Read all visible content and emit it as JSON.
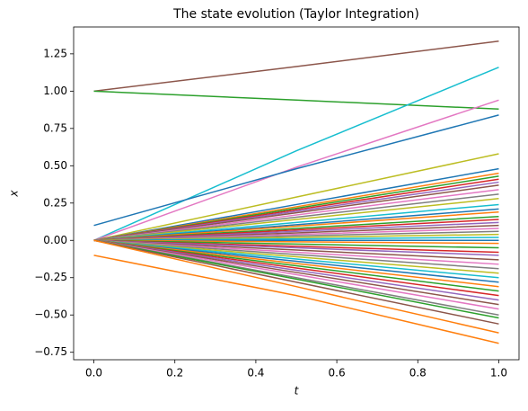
{
  "chart_data": {
    "type": "line",
    "title": "The state evolution (Taylor Integration)",
    "x_label": "t",
    "y_label": "x",
    "x": [
      0,
      0.5,
      1
    ],
    "xlim": [
      -0.05,
      1.05
    ],
    "ylim": [
      -0.8,
      1.43
    ],
    "xticks": [
      {
        "value": 0,
        "label": "0.0"
      },
      {
        "value": 0.2,
        "label": "0.2"
      },
      {
        "value": 0.4,
        "label": "0.4"
      },
      {
        "value": 0.6,
        "label": "0.6"
      },
      {
        "value": 0.8,
        "label": "0.8"
      },
      {
        "value": 1,
        "label": "1.0"
      }
    ],
    "yticks": [
      {
        "value": -0.75,
        "label": "−0.75"
      },
      {
        "value": -0.5,
        "label": "−0.50"
      },
      {
        "value": -0.25,
        "label": "−0.25"
      },
      {
        "value": 0,
        "label": "0.00"
      },
      {
        "value": 0.25,
        "label": "0.25"
      },
      {
        "value": 0.5,
        "label": "0.50"
      },
      {
        "value": 0.75,
        "label": "0.75"
      },
      {
        "value": 1,
        "label": "1.00"
      },
      {
        "value": 1.25,
        "label": "1.25"
      }
    ],
    "series": [
      {
        "color": "#8c564b",
        "values": [
          1.0,
          1.165,
          1.335
        ]
      },
      {
        "color": "#2ca02c",
        "values": [
          1.0,
          0.94,
          0.88
        ]
      },
      {
        "color": "#17becf",
        "values": [
          0,
          0.6,
          1.16
        ]
      },
      {
        "color": "#e377c2",
        "values": [
          0,
          0.49,
          0.94
        ]
      },
      {
        "color": "#1f77b4",
        "values": [
          0.1,
          0.48,
          0.84
        ]
      },
      {
        "color": "#ff7f0e",
        "values": [
          -0.1,
          -0.37,
          -0.69
        ]
      },
      {
        "color": "#bcbd22",
        "values": [
          0,
          0.29,
          0.58
        ]
      },
      {
        "color": "#1f77b4",
        "values": [
          0,
          0.24,
          0.48
        ]
      },
      {
        "color": "#ff7f0e",
        "values": [
          0,
          0.225,
          0.45
        ]
      },
      {
        "color": "#2ca02c",
        "values": [
          0,
          0.215,
          0.43
        ]
      },
      {
        "color": "#d62728",
        "values": [
          0,
          0.205,
          0.41
        ]
      },
      {
        "color": "#9467bd",
        "values": [
          0,
          0.195,
          0.39
        ]
      },
      {
        "color": "#8c564b",
        "values": [
          0,
          0.185,
          0.37
        ]
      },
      {
        "color": "#e377c2",
        "values": [
          0,
          0.17,
          0.34
        ]
      },
      {
        "color": "#7f7f7f",
        "values": [
          0,
          0.155,
          0.31
        ]
      },
      {
        "color": "#bcbd22",
        "values": [
          0,
          0.14,
          0.28
        ]
      },
      {
        "color": "#17becf",
        "values": [
          0,
          0.12,
          0.24
        ]
      },
      {
        "color": "#1f77b4",
        "values": [
          0,
          0.105,
          0.21
        ]
      },
      {
        "color": "#ff7f0e",
        "values": [
          0,
          0.095,
          0.19
        ]
      },
      {
        "color": "#2ca02c",
        "values": [
          0,
          0.08,
          0.16
        ]
      },
      {
        "color": "#d62728",
        "values": [
          0,
          0.07,
          0.14
        ]
      },
      {
        "color": "#9467bd",
        "values": [
          0,
          0.06,
          0.12
        ]
      },
      {
        "color": "#8c564b",
        "values": [
          0,
          0.05,
          0.1
        ]
      },
      {
        "color": "#e377c2",
        "values": [
          0,
          0.04,
          0.08
        ]
      },
      {
        "color": "#7f7f7f",
        "values": [
          0,
          0.03,
          0.06
        ]
      },
      {
        "color": "#bcbd22",
        "values": [
          0,
          0.02,
          0.04
        ]
      },
      {
        "color": "#17becf",
        "values": [
          0,
          0.01,
          0.02
        ]
      },
      {
        "color": "#1f77b4",
        "values": [
          0,
          0,
          0
        ]
      },
      {
        "color": "#ff7f0e",
        "values": [
          0,
          -0.01,
          -0.02
        ]
      },
      {
        "color": "#2ca02c",
        "values": [
          0,
          -0.025,
          -0.05
        ]
      },
      {
        "color": "#d62728",
        "values": [
          0,
          -0.04,
          -0.08
        ]
      },
      {
        "color": "#9467bd",
        "values": [
          0,
          -0.05,
          -0.1
        ]
      },
      {
        "color": "#8c564b",
        "values": [
          0,
          -0.065,
          -0.13
        ]
      },
      {
        "color": "#e377c2",
        "values": [
          0,
          -0.08,
          -0.16
        ]
      },
      {
        "color": "#7f7f7f",
        "values": [
          0,
          -0.095,
          -0.19
        ]
      },
      {
        "color": "#bcbd22",
        "values": [
          0,
          -0.11,
          -0.22
        ]
      },
      {
        "color": "#17becf",
        "values": [
          0,
          -0.125,
          -0.25
        ]
      },
      {
        "color": "#1f77b4",
        "values": [
          0,
          -0.14,
          -0.28
        ]
      },
      {
        "color": "#ff7f0e",
        "values": [
          0,
          -0.155,
          -0.31
        ]
      },
      {
        "color": "#2ca02c",
        "values": [
          0,
          -0.17,
          -0.34
        ]
      },
      {
        "color": "#d62728",
        "values": [
          0,
          -0.185,
          -0.37
        ]
      },
      {
        "color": "#9467bd",
        "values": [
          0,
          -0.2,
          -0.4
        ]
      },
      {
        "color": "#8c564b",
        "values": [
          0,
          -0.215,
          -0.43
        ]
      },
      {
        "color": "#e377c2",
        "values": [
          0,
          -0.23,
          -0.46
        ]
      },
      {
        "color": "#7f7f7f",
        "values": [
          0,
          -0.25,
          -0.5
        ]
      },
      {
        "color": "#2ca02c",
        "values": [
          0,
          -0.26,
          -0.52
        ]
      },
      {
        "color": "#8c564b",
        "values": [
          0,
          -0.28,
          -0.56
        ]
      },
      {
        "color": "#ff7f0e",
        "values": [
          0,
          -0.31,
          -0.62
        ]
      }
    ]
  }
}
